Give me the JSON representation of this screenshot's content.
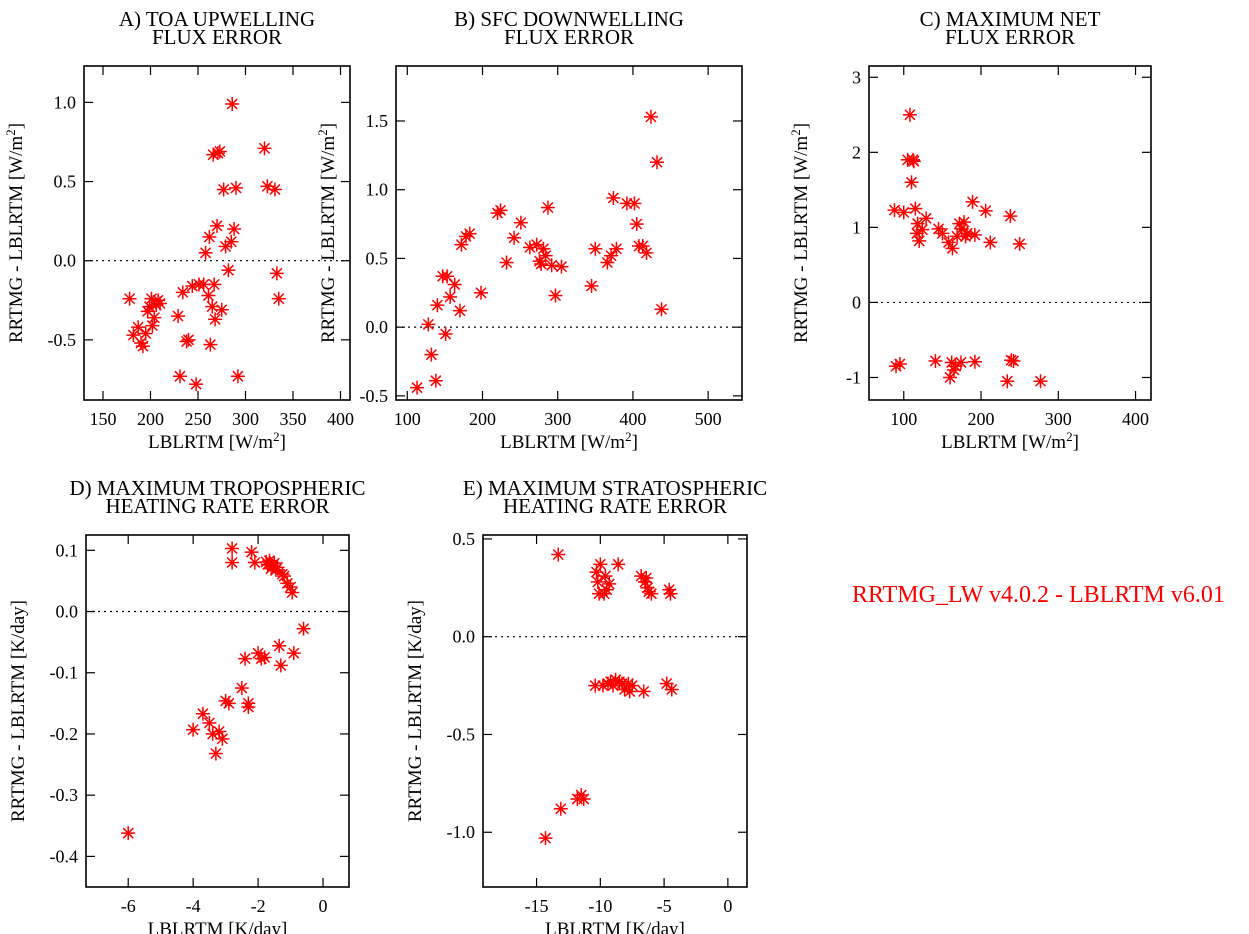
{
  "figure": {
    "annotation": "RRTMG_LW v4.0.2 - LBLRTM v6.01",
    "marker_color": "#ff0000",
    "marker_symbol": "asterisk",
    "zero_line": "dotted"
  },
  "chart_data": [
    {
      "id": "A",
      "type": "scatter",
      "title": [
        "A) TOA UPWELLING",
        "FLUX ERROR"
      ],
      "xlabel": "LBLRTM [W/m",
      "xlabel_sup": "2",
      "xlabel_end": "]",
      "ylabel": "RRTMG - LBLRTM [W/m",
      "ylabel_sup": "2",
      "ylabel_end": "]",
      "xlim": [
        130,
        410
      ],
      "ylim": [
        -0.88,
        1.23
      ],
      "xticks": [
        150,
        200,
        250,
        300,
        350,
        400
      ],
      "yticks": [
        -0.5,
        0.0,
        0.5,
        1.0
      ],
      "ytick_labels": [
        "-0.5",
        "0.0",
        "0.5",
        "1.0"
      ],
      "points": [
        [
          178,
          -0.24
        ],
        [
          182,
          -0.47
        ],
        [
          187,
          -0.42
        ],
        [
          190,
          -0.52
        ],
        [
          192,
          -0.54
        ],
        [
          195,
          -0.46
        ],
        [
          197,
          -0.32
        ],
        [
          199,
          -0.29
        ],
        [
          201,
          -0.24
        ],
        [
          202,
          -0.41
        ],
        [
          204,
          -0.36
        ],
        [
          206,
          -0.28
        ],
        [
          208,
          -0.25
        ],
        [
          210,
          -0.27
        ],
        [
          229,
          -0.35
        ],
        [
          231,
          -0.73
        ],
        [
          234,
          -0.2
        ],
        [
          238,
          -0.51
        ],
        [
          240,
          -0.5
        ],
        [
          244,
          -0.16
        ],
        [
          248,
          -0.78
        ],
        [
          251,
          -0.15
        ],
        [
          256,
          -0.15
        ],
        [
          258,
          0.05
        ],
        [
          261,
          -0.22
        ],
        [
          262,
          0.15
        ],
        [
          263,
          -0.53
        ],
        [
          265,
          -0.29
        ],
        [
          266,
          0.67
        ],
        [
          267,
          -0.15
        ],
        [
          268,
          -0.37
        ],
        [
          270,
          0.22
        ],
        [
          271,
          0.68
        ],
        [
          273,
          0.69
        ],
        [
          275,
          -0.31
        ],
        [
          277,
          0.45
        ],
        [
          279,
          0.09
        ],
        [
          282,
          -0.06
        ],
        [
          285,
          0.12
        ],
        [
          286,
          0.99
        ],
        [
          288,
          0.2
        ],
        [
          290,
          0.46
        ],
        [
          292,
          -0.73
        ],
        [
          320,
          0.71
        ],
        [
          323,
          0.47
        ],
        [
          331,
          0.45
        ],
        [
          333,
          -0.08
        ],
        [
          335,
          -0.24
        ]
      ]
    },
    {
      "id": "B",
      "type": "scatter",
      "title": [
        "B) SFC DOWNWELLING",
        "FLUX ERROR"
      ],
      "xlabel": "LBLRTM  [W/m",
      "xlabel_sup": "2",
      "xlabel_end": "]",
      "ylabel": "RRTMG - LBLRTM [W/m",
      "ylabel_sup": "2",
      "ylabel_end": "]",
      "xlim": [
        85,
        545
      ],
      "ylim": [
        -0.53,
        1.9
      ],
      "xticks": [
        100,
        200,
        300,
        400,
        500
      ],
      "yticks": [
        -0.5,
        0.0,
        0.5,
        1.0,
        1.5
      ],
      "ytick_labels": [
        "-0.5",
        "0.0",
        "0.5",
        "1.0",
        "1.5"
      ],
      "points": [
        [
          113,
          -0.44
        ],
        [
          128,
          0.02
        ],
        [
          132,
          -0.2
        ],
        [
          138,
          -0.39
        ],
        [
          140,
          0.16
        ],
        [
          147,
          0.37
        ],
        [
          151,
          -0.05
        ],
        [
          153,
          0.37
        ],
        [
          157,
          0.22
        ],
        [
          163,
          0.31
        ],
        [
          170,
          0.12
        ],
        [
          172,
          0.6
        ],
        [
          178,
          0.66
        ],
        [
          183,
          0.68
        ],
        [
          198,
          0.25
        ],
        [
          220,
          0.83
        ],
        [
          224,
          0.85
        ],
        [
          232,
          0.47
        ],
        [
          242,
          0.65
        ],
        [
          251,
          0.76
        ],
        [
          263,
          0.58
        ],
        [
          272,
          0.6
        ],
        [
          276,
          0.48
        ],
        [
          278,
          0.46
        ],
        [
          281,
          0.57
        ],
        [
          284,
          0.52
        ],
        [
          287,
          0.87
        ],
        [
          292,
          0.45
        ],
        [
          297,
          0.23
        ],
        [
          305,
          0.44
        ],
        [
          345,
          0.3
        ],
        [
          350,
          0.57
        ],
        [
          366,
          0.47
        ],
        [
          371,
          0.52
        ],
        [
          374,
          0.94
        ],
        [
          378,
          0.57
        ],
        [
          392,
          0.9
        ],
        [
          402,
          0.9
        ],
        [
          405,
          0.75
        ],
        [
          408,
          0.59
        ],
        [
          413,
          0.59
        ],
        [
          418,
          0.54
        ],
        [
          424,
          1.53
        ],
        [
          432,
          1.2
        ],
        [
          438,
          0.13
        ]
      ]
    },
    {
      "id": "C",
      "type": "scatter",
      "title": [
        "C) MAXIMUM NET",
        "FLUX ERROR"
      ],
      "xlabel": "LBLRTM [W/m",
      "xlabel_sup": "2",
      "xlabel_end": "]",
      "ylabel": "RRTMG - LBLRTM  [W/m",
      "ylabel_sup": "2",
      "ylabel_end": "]",
      "xlim": [
        55,
        420
      ],
      "ylim": [
        -1.3,
        3.15
      ],
      "xticks": [
        100,
        200,
        300,
        400
      ],
      "yticks": [
        -1,
        0,
        1,
        2,
        3
      ],
      "ytick_labels": [
        "-1",
        "0",
        "1",
        "2",
        "3"
      ],
      "points": [
        [
          88,
          1.23
        ],
        [
          90,
          -0.85
        ],
        [
          95,
          -0.82
        ],
        [
          100,
          1.2
        ],
        [
          105,
          1.9
        ],
        [
          108,
          2.5
        ],
        [
          110,
          1.6
        ],
        [
          112,
          1.9
        ],
        [
          113,
          1.88
        ],
        [
          115,
          1.25
        ],
        [
          117,
          0.92
        ],
        [
          118,
          1.05
        ],
        [
          120,
          0.82
        ],
        [
          124,
          0.97
        ],
        [
          129,
          1.12
        ],
        [
          141,
          -0.78
        ],
        [
          145,
          0.98
        ],
        [
          150,
          0.92
        ],
        [
          158,
          0.8
        ],
        [
          160,
          -1.0
        ],
        [
          162,
          -0.8
        ],
        [
          163,
          0.72
        ],
        [
          165,
          -0.9
        ],
        [
          167,
          -0.85
        ],
        [
          169,
          0.88
        ],
        [
          172,
          1.05
        ],
        [
          174,
          -0.8
        ],
        [
          175,
          0.98
        ],
        [
          178,
          1.07
        ],
        [
          180,
          0.88
        ],
        [
          182,
          0.92
        ],
        [
          189,
          1.34
        ],
        [
          192,
          0.9
        ],
        [
          192,
          -0.79
        ],
        [
          206,
          1.22
        ],
        [
          212,
          0.8
        ],
        [
          234,
          -1.05
        ],
        [
          238,
          1.15
        ],
        [
          239,
          -0.77
        ],
        [
          242,
          -0.78
        ],
        [
          250,
          0.78
        ],
        [
          277,
          -1.05
        ]
      ]
    },
    {
      "id": "D",
      "type": "scatter",
      "title": [
        "D) MAXIMUM TROPOSPHERIC",
        "HEATING RATE ERROR"
      ],
      "xlabel": "LBLRTM [K/day]",
      "ylabel": "RRTMG - LBLRTM [K/day]",
      "xlim": [
        -7.3,
        0.8
      ],
      "ylim": [
        -0.45,
        0.125
      ],
      "xticks": [
        -6,
        -4,
        -2,
        0
      ],
      "yticks": [
        -0.4,
        -0.3,
        -0.2,
        -0.1,
        0.0,
        0.1
      ],
      "ytick_labels": [
        "-0.4",
        "-0.3",
        "-0.2",
        "-0.1",
        "0.0",
        "0.1"
      ],
      "points": [
        [
          -6.0,
          -0.362
        ],
        [
          -4.0,
          -0.193
        ],
        [
          -3.7,
          -0.167
        ],
        [
          -3.5,
          -0.182
        ],
        [
          -3.4,
          -0.2
        ],
        [
          -3.3,
          -0.232
        ],
        [
          -3.2,
          -0.196
        ],
        [
          -3.1,
          -0.208
        ],
        [
          -3.0,
          -0.146
        ],
        [
          -2.9,
          -0.15
        ],
        [
          -2.8,
          0.103
        ],
        [
          -2.8,
          0.08
        ],
        [
          -2.5,
          -0.125
        ],
        [
          -2.4,
          -0.077
        ],
        [
          -2.3,
          -0.15
        ],
        [
          -2.3,
          -0.156
        ],
        [
          -2.2,
          0.097
        ],
        [
          -2.1,
          0.08
        ],
        [
          -2.0,
          -0.068
        ],
        [
          -1.9,
          -0.077
        ],
        [
          -1.8,
          -0.075
        ],
        [
          -1.75,
          0.081
        ],
        [
          -1.7,
          0.077
        ],
        [
          -1.65,
          0.083
        ],
        [
          -1.6,
          0.07
        ],
        [
          -1.55,
          0.074
        ],
        [
          -1.5,
          0.079
        ],
        [
          -1.45,
          0.068
        ],
        [
          -1.4,
          0.072
        ],
        [
          -1.35,
          -0.056
        ],
        [
          -1.3,
          -0.088
        ],
        [
          -1.25,
          0.061
        ],
        [
          -1.2,
          0.058
        ],
        [
          -1.1,
          0.046
        ],
        [
          -1.0,
          0.04
        ],
        [
          -0.95,
          0.031
        ],
        [
          -0.9,
          -0.068
        ],
        [
          -0.6,
          -0.028
        ]
      ]
    },
    {
      "id": "E",
      "type": "scatter",
      "title": [
        "E) MAXIMUM STRATOSPHERIC",
        "HEATING RATE ERROR"
      ],
      "xlabel": "LBLRTM [K/day]",
      "ylabel": "RRTMG - LBLRTM [K/day]",
      "xlim": [
        -19.2,
        1.5
      ],
      "ylim": [
        -1.28,
        0.52
      ],
      "xticks": [
        -15,
        -10,
        -5,
        0
      ],
      "yticks": [
        -1.0,
        -0.5,
        0.0,
        0.5
      ],
      "ytick_labels": [
        "-1.0",
        "-0.5",
        "0.0",
        "0.5"
      ],
      "points": [
        [
          -14.3,
          -1.03
        ],
        [
          -13.3,
          0.42
        ],
        [
          -13.1,
          -0.88
        ],
        [
          -11.8,
          -0.83
        ],
        [
          -11.5,
          -0.81
        ],
        [
          -11.3,
          -0.83
        ],
        [
          -10.4,
          -0.25
        ],
        [
          -10.3,
          0.33
        ],
        [
          -10.2,
          0.28
        ],
        [
          -10.1,
          0.22
        ],
        [
          -10.0,
          0.37
        ],
        [
          -9.8,
          -0.25
        ],
        [
          -9.7,
          0.22
        ],
        [
          -9.6,
          0.31
        ],
        [
          -9.5,
          0.24
        ],
        [
          -9.4,
          -0.24
        ],
        [
          -9.3,
          0.27
        ],
        [
          -9.2,
          -0.23
        ],
        [
          -9.0,
          -0.25
        ],
        [
          -8.8,
          -0.22
        ],
        [
          -8.6,
          0.37
        ],
        [
          -8.5,
          -0.23
        ],
        [
          -8.3,
          -0.24
        ],
        [
          -8.1,
          -0.27
        ],
        [
          -7.8,
          -0.24
        ],
        [
          -7.7,
          -0.28
        ],
        [
          -7.5,
          -0.25
        ],
        [
          -6.8,
          0.31
        ],
        [
          -6.6,
          -0.28
        ],
        [
          -6.5,
          0.28
        ],
        [
          -6.4,
          0.3
        ],
        [
          -6.3,
          0.25
        ],
        [
          -6.2,
          0.23
        ],
        [
          -6.0,
          0.22
        ],
        [
          -4.8,
          -0.24
        ],
        [
          -4.6,
          0.24
        ],
        [
          -4.5,
          0.22
        ],
        [
          -4.4,
          -0.27
        ]
      ]
    }
  ]
}
